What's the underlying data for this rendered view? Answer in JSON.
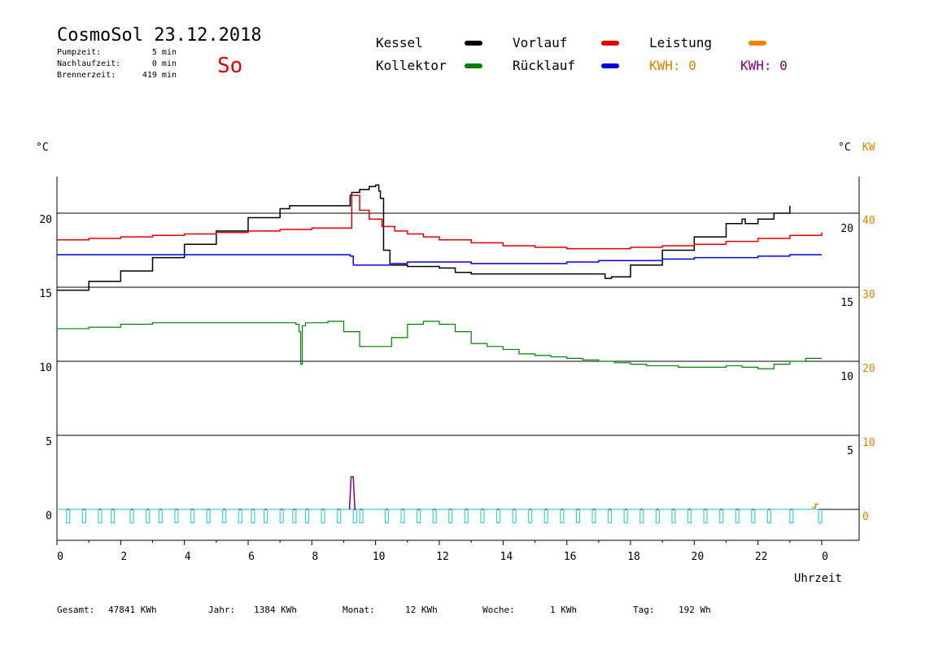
{
  "header": {
    "title": "CosmoSol 23.12.2018",
    "day": "So",
    "info": [
      {
        "label": "Pumpzeit:",
        "value": "5 min"
      },
      {
        "label": "Nachlaufzeit:",
        "value": "0 min"
      },
      {
        "label": "Brennerzeit:",
        "value": "419 min"
      }
    ]
  },
  "legend": {
    "items": [
      {
        "label": "Kessel",
        "color": "#000000"
      },
      {
        "label": "Vorlauf",
        "color": "#e00000"
      },
      {
        "label": "Leistung",
        "color": "#ff8000"
      },
      {
        "label": "Kollektor",
        "color": "#008000"
      },
      {
        "label": "Rücklauf",
        "color": "#0000e0"
      }
    ],
    "kwh_orange": "KWH: 0",
    "kwh_purple": "KWH: 0",
    "kwh_orange_color": "#e08000",
    "kwh_purple_color": "#800080"
  },
  "footer": [
    {
      "label": "Gesamt:",
      "value": "47841 KWh"
    },
    {
      "label": "Jahr:",
      "value": "1384 KWh"
    },
    {
      "label": "Monat:",
      "value": "12 KWh"
    },
    {
      "label": "Woche:",
      "value": "1 KWh"
    },
    {
      "label": "Tag:",
      "value": "192 Wh"
    }
  ],
  "chart_data": {
    "type": "line",
    "xlabel": "Uhrzeit",
    "x_ticks": [
      "0",
      "2",
      "4",
      "6",
      "8",
      "10",
      "12",
      "14",
      "16",
      "18",
      "20",
      "22",
      "0"
    ],
    "xlim": [
      0,
      24
    ],
    "ylabel_left": "°C",
    "ylabel_right_1": "°C",
    "ylabel_right_2": "KW",
    "left_axis": {
      "ticks": [
        "0",
        "5",
        "10",
        "15",
        "20"
      ],
      "ylim": [
        0,
        22.5
      ]
    },
    "right_axis_1": {
      "ticks": [
        "5",
        "10",
        "15",
        "20"
      ],
      "ylim": [
        0,
        22.5
      ]
    },
    "right_axis_2": {
      "ticks": [
        "0",
        "10",
        "20",
        "30",
        "40"
      ],
      "ylim": [
        0,
        45
      ],
      "color": "#e08000"
    },
    "grid": "horizontal",
    "series": [
      {
        "name": "Kessel",
        "color": "#000000",
        "x": [
          0,
          1,
          2,
          3,
          4,
          5,
          6,
          7,
          7.3,
          9.2,
          9.25,
          9.5,
          9.8,
          10.0,
          10.1,
          10.15,
          10.25,
          10.45,
          11.0,
          12.0,
          12.5,
          13.0,
          14.0,
          15.0,
          16.0,
          17.0,
          17.2,
          17.4,
          18.0,
          19.0,
          20.0,
          21.0,
          21.5,
          21.6,
          22.0,
          22.5,
          23.0
        ],
        "y": [
          14.8,
          15.4,
          16.1,
          17.0,
          17.9,
          18.8,
          19.7,
          20.3,
          20.5,
          21.2,
          21.4,
          21.6,
          21.8,
          21.9,
          21.5,
          21.0,
          17.5,
          16.5,
          16.4,
          16.3,
          16.0,
          15.9,
          15.9,
          15.9,
          15.9,
          15.9,
          15.6,
          15.7,
          16.5,
          17.5,
          18.4,
          19.3,
          19.6,
          19.3,
          19.6,
          20.0,
          20.5
        ]
      },
      {
        "name": "Vorlauf",
        "color": "#e00000",
        "x": [
          0,
          1,
          2,
          3,
          4,
          5,
          6,
          7,
          8,
          9.2,
          9.25,
          9.5,
          9.8,
          10.2,
          10.6,
          11.0,
          11.5,
          12.0,
          13.0,
          14.0,
          15.0,
          16.0,
          17.0,
          18.0,
          19.0,
          20.0,
          21.0,
          22.0,
          23.0,
          24.0
        ],
        "y": [
          18.2,
          18.3,
          18.4,
          18.5,
          18.6,
          18.7,
          18.8,
          18.9,
          19.0,
          19.0,
          21.2,
          20.2,
          19.6,
          19.1,
          18.8,
          18.6,
          18.4,
          18.2,
          18.0,
          17.8,
          17.7,
          17.6,
          17.6,
          17.7,
          17.8,
          17.9,
          18.1,
          18.3,
          18.5,
          18.7
        ]
      },
      {
        "name": "Rücklauf",
        "color": "#0000e0",
        "x": [
          0,
          2,
          4,
          6,
          8,
          9.2,
          9.3,
          10.0,
          10.5,
          11.0,
          12.0,
          13.0,
          14.0,
          15.0,
          16.0,
          17.0,
          18.0,
          19.0,
          20.0,
          21.0,
          22.0,
          23.0,
          24.0
        ],
        "y": [
          17.2,
          17.2,
          17.2,
          17.2,
          17.2,
          17.1,
          16.5,
          16.5,
          16.6,
          16.7,
          16.7,
          16.6,
          16.6,
          16.6,
          16.7,
          16.8,
          16.8,
          16.9,
          17.0,
          17.0,
          17.1,
          17.2,
          17.2
        ]
      },
      {
        "name": "Kollektor",
        "color": "#008000",
        "x": [
          0,
          1,
          2,
          3,
          4,
          5,
          6,
          7,
          7.5,
          7.6,
          7.65,
          7.7,
          7.8,
          8.0,
          8.5,
          9.0,
          9.5,
          10.0,
          10.5,
          11.0,
          11.5,
          12.0,
          12.5,
          13.0,
          13.5,
          14.0,
          14.5,
          15.0,
          15.5,
          16.0,
          16.5,
          17.0,
          17.5,
          18.0,
          18.5,
          19.0,
          19.5,
          20.0,
          20.5,
          21.0,
          21.5,
          22.0,
          22.5,
          23.0,
          23.5,
          24.0
        ],
        "y": [
          12.2,
          12.3,
          12.5,
          12.6,
          12.6,
          12.6,
          12.6,
          12.6,
          12.5,
          12.0,
          9.8,
          12.4,
          12.6,
          12.6,
          12.7,
          12.0,
          11.0,
          11.0,
          11.6,
          12.5,
          12.7,
          12.5,
          12.0,
          11.2,
          11.0,
          10.8,
          10.5,
          10.4,
          10.3,
          10.2,
          10.1,
          10.0,
          9.9,
          9.8,
          9.7,
          9.7,
          9.6,
          9.6,
          9.6,
          9.7,
          9.6,
          9.5,
          9.8,
          10.0,
          10.2,
          10.2
        ]
      },
      {
        "name": "Leistung",
        "color": "#ff8000",
        "x": [
          23.7,
          23.8,
          23.9
        ],
        "y": [
          0.1,
          0.35,
          0.35
        ]
      }
    ],
    "pump_spikes": {
      "color": "#40d0d0",
      "x": [
        0.3,
        0.8,
        1.3,
        1.7,
        2.3,
        2.8,
        3.2,
        3.7,
        4.2,
        4.7,
        5.2,
        5.7,
        6.1,
        6.5,
        7.0,
        7.4,
        7.8,
        8.3,
        8.8,
        9.3,
        9.5,
        10.3,
        10.8,
        11.3,
        11.8,
        12.3,
        12.8,
        13.3,
        13.8,
        14.3,
        14.8,
        15.3,
        15.8,
        16.3,
        16.8,
        17.3,
        17.8,
        18.3,
        18.8,
        19.3,
        19.8,
        20.3,
        20.8,
        21.3,
        21.8,
        22.3,
        23.0,
        23.9
      ],
      "depth": -0.9
    },
    "burner_pulse": {
      "color": "#800080",
      "x_start": 9.18,
      "x_end": 9.35,
      "peak": 2.2
    }
  }
}
